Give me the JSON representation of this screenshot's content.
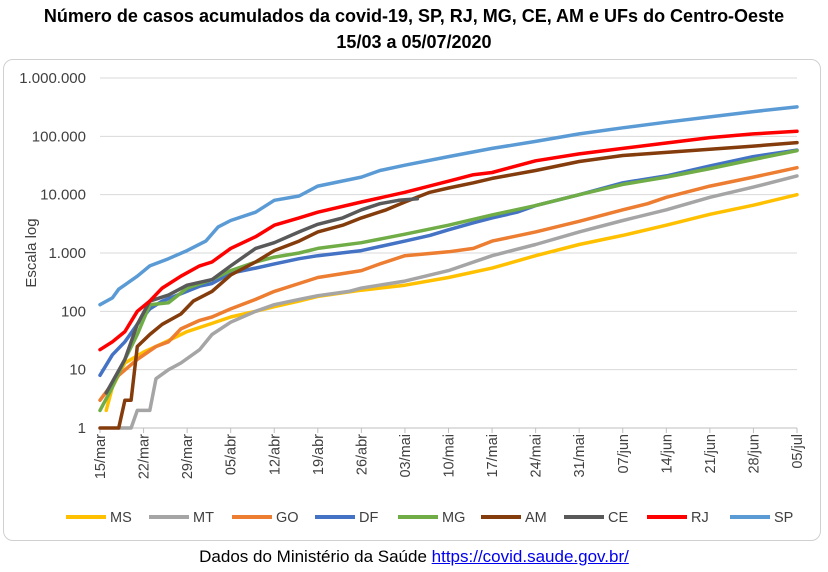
{
  "chart_data": {
    "type": "line",
    "title": "Número de casos acumulados da covid-19, SP, RJ, MG, CE, AM e UFs do Centro-Oeste",
    "subtitle": "15/03 a 05/07/2020",
    "xlabel": "",
    "ylabel": "Escala log",
    "y_scale": "log",
    "ylim": [
      1,
      1000000
    ],
    "y_ticks": [
      "1",
      "10",
      "100",
      "1.000",
      "10.000",
      "100.000",
      "1.000.000"
    ],
    "x_ticks": [
      "15/mar",
      "22/mar",
      "29/mar",
      "05/abr",
      "12/abr",
      "19/abr",
      "26/abr",
      "03/mai",
      "10/mai",
      "17/mai",
      "24/mai",
      "31/mai",
      "07/jun",
      "14/jun",
      "21/jun",
      "28/jun",
      "05/jul"
    ],
    "x_tick_days": [
      0,
      7,
      14,
      21,
      28,
      35,
      42,
      49,
      56,
      63,
      70,
      77,
      84,
      91,
      98,
      105,
      112
    ],
    "grid": "horizontal",
    "legend": "bottom",
    "series": [
      {
        "name": "MS",
        "color": "#ffc000",
        "points": [
          [
            1,
            2
          ],
          [
            2,
            5
          ],
          [
            4,
            13
          ],
          [
            7,
            20
          ],
          [
            10,
            28
          ],
          [
            14,
            45
          ],
          [
            18,
            62
          ],
          [
            21,
            80
          ],
          [
            25,
            100
          ],
          [
            28,
            120
          ],
          [
            32,
            150
          ],
          [
            35,
            180
          ],
          [
            42,
            230
          ],
          [
            49,
            280
          ],
          [
            56,
            380
          ],
          [
            63,
            550
          ],
          [
            70,
            900
          ],
          [
            77,
            1400
          ],
          [
            84,
            2000
          ],
          [
            91,
            3000
          ],
          [
            98,
            4600
          ],
          [
            105,
            6600
          ],
          [
            112,
            10000
          ]
        ]
      },
      {
        "name": "MT",
        "color": "#a5a5a5",
        "points": [
          [
            3,
            1
          ],
          [
            5,
            1
          ],
          [
            6,
            2
          ],
          [
            8,
            2
          ],
          [
            9,
            7
          ],
          [
            11,
            10
          ],
          [
            13,
            13
          ],
          [
            16,
            22
          ],
          [
            18,
            40
          ],
          [
            21,
            65
          ],
          [
            25,
            100
          ],
          [
            28,
            130
          ],
          [
            32,
            160
          ],
          [
            35,
            185
          ],
          [
            40,
            220
          ],
          [
            42,
            250
          ],
          [
            49,
            330
          ],
          [
            56,
            500
          ],
          [
            63,
            900
          ],
          [
            70,
            1400
          ],
          [
            77,
            2300
          ],
          [
            84,
            3600
          ],
          [
            91,
            5500
          ],
          [
            98,
            9000
          ],
          [
            105,
            13500
          ],
          [
            112,
            21000
          ]
        ]
      },
      {
        "name": "GO",
        "color": "#ed7d31",
        "points": [
          [
            0,
            3
          ],
          [
            3,
            8
          ],
          [
            6,
            15
          ],
          [
            9,
            25
          ],
          [
            11,
            30
          ],
          [
            13,
            50
          ],
          [
            16,
            70
          ],
          [
            18,
            80
          ],
          [
            21,
            110
          ],
          [
            25,
            160
          ],
          [
            28,
            220
          ],
          [
            32,
            300
          ],
          [
            35,
            380
          ],
          [
            42,
            500
          ],
          [
            45,
            650
          ],
          [
            49,
            900
          ],
          [
            56,
            1050
          ],
          [
            60,
            1200
          ],
          [
            63,
            1600
          ],
          [
            70,
            2300
          ],
          [
            77,
            3500
          ],
          [
            84,
            5500
          ],
          [
            88,
            7000
          ],
          [
            91,
            9000
          ],
          [
            98,
            14000
          ],
          [
            105,
            20000
          ],
          [
            112,
            29000
          ]
        ]
      },
      {
        "name": "DF",
        "color": "#4472c4",
        "points": [
          [
            0,
            8
          ],
          [
            2,
            18
          ],
          [
            4,
            30
          ],
          [
            6,
            60
          ],
          [
            8,
            110
          ],
          [
            10,
            150
          ],
          [
            13,
            200
          ],
          [
            16,
            270
          ],
          [
            18,
            300
          ],
          [
            21,
            450
          ],
          [
            25,
            550
          ],
          [
            28,
            650
          ],
          [
            32,
            800
          ],
          [
            35,
            900
          ],
          [
            42,
            1100
          ],
          [
            49,
            1600
          ],
          [
            53,
            2000
          ],
          [
            56,
            2500
          ],
          [
            60,
            3300
          ],
          [
            63,
            4000
          ],
          [
            67,
            5000
          ],
          [
            70,
            6500
          ],
          [
            77,
            10000
          ],
          [
            84,
            16000
          ],
          [
            91,
            21000
          ],
          [
            98,
            31000
          ],
          [
            105,
            45000
          ],
          [
            112,
            58000
          ]
        ]
      },
      {
        "name": "MG",
        "color": "#70ad47",
        "points": [
          [
            0,
            2
          ],
          [
            2,
            5
          ],
          [
            4,
            15
          ],
          [
            6,
            40
          ],
          [
            8,
            130
          ],
          [
            11,
            140
          ],
          [
            14,
            250
          ],
          [
            18,
            350
          ],
          [
            21,
            500
          ],
          [
            25,
            700
          ],
          [
            28,
            850
          ],
          [
            32,
            1000
          ],
          [
            35,
            1200
          ],
          [
            42,
            1500
          ],
          [
            49,
            2100
          ],
          [
            56,
            3000
          ],
          [
            63,
            4500
          ],
          [
            70,
            6500
          ],
          [
            77,
            10000
          ],
          [
            84,
            15000
          ],
          [
            91,
            20000
          ],
          [
            98,
            28000
          ],
          [
            105,
            40000
          ],
          [
            112,
            57000
          ]
        ]
      },
      {
        "name": "AM",
        "color": "#843c0c",
        "points": [
          [
            0,
            1
          ],
          [
            3,
            1
          ],
          [
            4,
            3
          ],
          [
            5,
            3
          ],
          [
            6,
            25
          ],
          [
            8,
            40
          ],
          [
            10,
            60
          ],
          [
            13,
            90
          ],
          [
            15,
            150
          ],
          [
            18,
            220
          ],
          [
            21,
            420
          ],
          [
            25,
            700
          ],
          [
            28,
            1100
          ],
          [
            32,
            1600
          ],
          [
            35,
            2300
          ],
          [
            39,
            3000
          ],
          [
            42,
            4000
          ],
          [
            46,
            5500
          ],
          [
            49,
            7500
          ],
          [
            53,
            11000
          ],
          [
            56,
            13000
          ],
          [
            60,
            16000
          ],
          [
            63,
            19000
          ],
          [
            70,
            26000
          ],
          [
            77,
            37000
          ],
          [
            84,
            47000
          ],
          [
            91,
            53000
          ],
          [
            98,
            60000
          ],
          [
            105,
            68000
          ],
          [
            112,
            78000
          ]
        ]
      },
      {
        "name": "CE",
        "color": "#595959",
        "points": [
          [
            1,
            4
          ],
          [
            4,
            15
          ],
          [
            6,
            60
          ],
          [
            8,
            150
          ],
          [
            11,
            190
          ],
          [
            14,
            280
          ],
          [
            18,
            350
          ],
          [
            21,
            600
          ],
          [
            25,
            1200
          ],
          [
            28,
            1500
          ],
          [
            32,
            2300
          ],
          [
            35,
            3100
          ],
          [
            39,
            4000
          ],
          [
            42,
            5500
          ],
          [
            45,
            7000
          ],
          [
            48,
            8000
          ],
          [
            51,
            8500
          ]
        ]
      },
      {
        "name": "RJ",
        "color": "#ff0000",
        "points": [
          [
            0,
            22
          ],
          [
            2,
            30
          ],
          [
            4,
            45
          ],
          [
            6,
            100
          ],
          [
            8,
            150
          ],
          [
            10,
            250
          ],
          [
            13,
            400
          ],
          [
            16,
            600
          ],
          [
            18,
            700
          ],
          [
            21,
            1200
          ],
          [
            25,
            1900
          ],
          [
            28,
            3000
          ],
          [
            32,
            4000
          ],
          [
            35,
            5000
          ],
          [
            42,
            7500
          ],
          [
            49,
            11000
          ],
          [
            56,
            17000
          ],
          [
            60,
            22000
          ],
          [
            63,
            24000
          ],
          [
            70,
            38000
          ],
          [
            77,
            50000
          ],
          [
            84,
            62000
          ],
          [
            91,
            77000
          ],
          [
            98,
            95000
          ],
          [
            105,
            110000
          ],
          [
            112,
            122000
          ]
        ]
      },
      {
        "name": "SP",
        "color": "#5b9bd5",
        "points": [
          [
            0,
            130
          ],
          [
            2,
            170
          ],
          [
            3,
            240
          ],
          [
            6,
            400
          ],
          [
            8,
            600
          ],
          [
            11,
            800
          ],
          [
            14,
            1100
          ],
          [
            17,
            1600
          ],
          [
            19,
            2800
          ],
          [
            21,
            3600
          ],
          [
            25,
            5000
          ],
          [
            28,
            8000
          ],
          [
            32,
            9500
          ],
          [
            35,
            14000
          ],
          [
            42,
            20000
          ],
          [
            45,
            26000
          ],
          [
            49,
            32000
          ],
          [
            56,
            45000
          ],
          [
            63,
            62000
          ],
          [
            70,
            82000
          ],
          [
            77,
            110000
          ],
          [
            84,
            140000
          ],
          [
            91,
            175000
          ],
          [
            98,
            215000
          ],
          [
            105,
            265000
          ],
          [
            112,
            320000
          ]
        ]
      }
    ]
  },
  "footer": {
    "text": "Dados do Ministério da Saúde ",
    "link": "https://covid.saude.gov.br/"
  }
}
